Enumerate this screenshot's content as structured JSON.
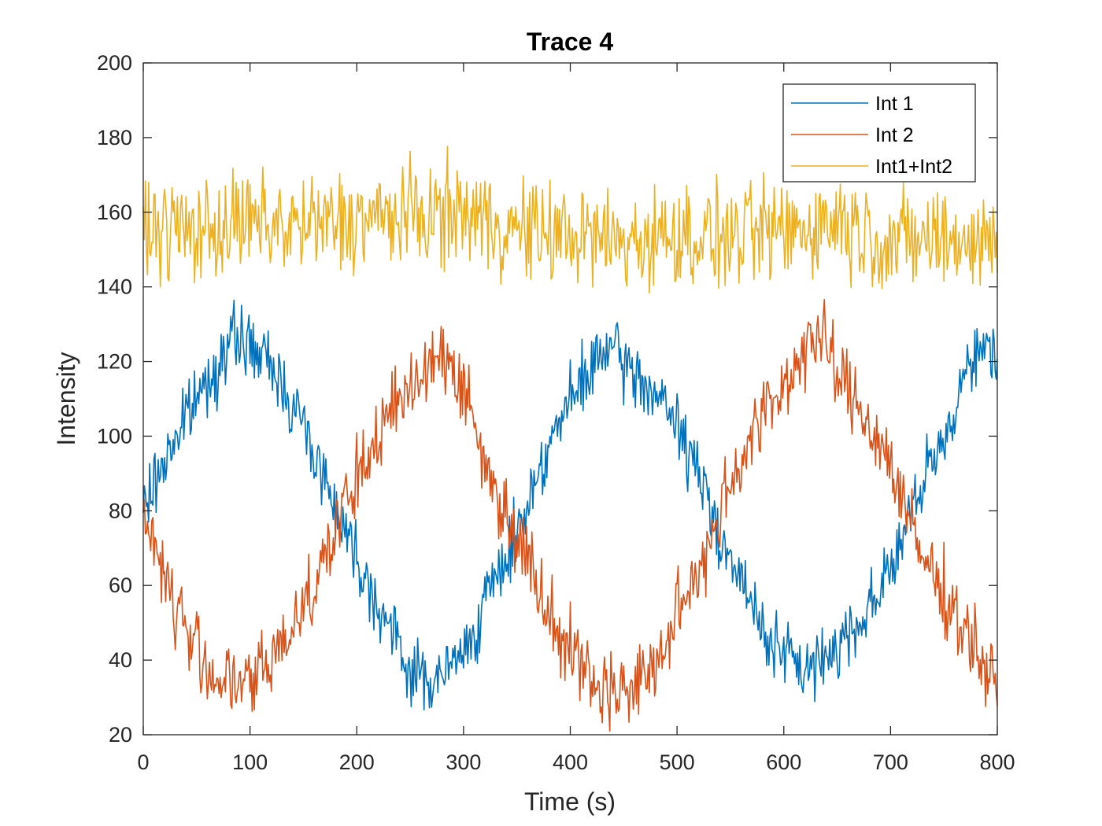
{
  "chart_data": {
    "type": "line",
    "title": "Trace 4",
    "xlabel": "Time (s)",
    "ylabel": "Intensity",
    "xlim": [
      0,
      800
    ],
    "ylim": [
      20,
      200
    ],
    "xticks": [
      0,
      100,
      200,
      300,
      400,
      500,
      600,
      700,
      800
    ],
    "yticks": [
      20,
      40,
      60,
      80,
      100,
      120,
      140,
      160,
      180,
      200
    ],
    "grid": false,
    "legend_position": "top-right",
    "series": [
      {
        "name": "Int 1",
        "color": "#0072BD",
        "x": [
          0,
          25,
          50,
          75,
          90,
          100,
          125,
          150,
          175,
          200,
          225,
          250,
          275,
          300,
          325,
          350,
          375,
          400,
          425,
          435,
          450,
          475,
          500,
          525,
          550,
          575,
          600,
          625,
          650,
          675,
          700,
          725,
          750,
          775,
          800
        ],
        "y": [
          80,
          97,
          110,
          122,
          127,
          124,
          117,
          103,
          85,
          68,
          52,
          37,
          34,
          42,
          58,
          74,
          95,
          109,
          120,
          124,
          119,
          113,
          103,
          86,
          67,
          51,
          41,
          37,
          44,
          52,
          65,
          83,
          99,
          122,
          123
        ]
      },
      {
        "name": "Int 2",
        "color": "#D95319",
        "x": [
          0,
          25,
          50,
          75,
          100,
          125,
          150,
          175,
          200,
          225,
          250,
          270,
          290,
          300,
          325,
          350,
          375,
          400,
          425,
          450,
          475,
          500,
          525,
          550,
          575,
          600,
          625,
          640,
          650,
          675,
          700,
          725,
          750,
          775,
          800
        ],
        "y": [
          80,
          58,
          42,
          34,
          33,
          42,
          55,
          71,
          88,
          103,
          113,
          122,
          120,
          112,
          88,
          74,
          57,
          43,
          33,
          32,
          36,
          51,
          68,
          88,
          103,
          113,
          127,
          124,
          116,
          106,
          93,
          70,
          58,
          46,
          31
        ]
      },
      {
        "name": "Int1+Int2",
        "color": "#EDB120",
        "x": [
          0,
          50,
          100,
          150,
          200,
          250,
          300,
          350,
          400,
          450,
          500,
          550,
          600,
          650,
          700,
          750,
          800
        ],
        "y": [
          156,
          155,
          157,
          156,
          158,
          159,
          160,
          155,
          154,
          152,
          154,
          153,
          155,
          158,
          152,
          153,
          152
        ]
      }
    ]
  }
}
